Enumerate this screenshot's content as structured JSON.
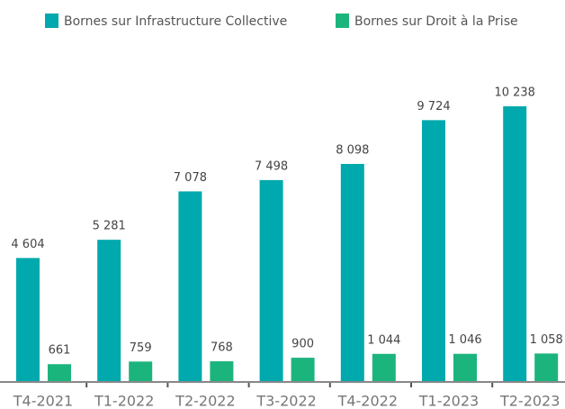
{
  "chart_data": {
    "type": "bar",
    "categories": [
      "T4-2021",
      "T1-2022",
      "T2-2022",
      "T3-2022",
      "T4-2022",
      "T1-2023",
      "T2-2023"
    ],
    "series": [
      {
        "name": "Bornes sur Infrastructure Collective",
        "color": "#00a9ad",
        "values": [
          4604,
          5281,
          7078,
          7498,
          8098,
          9724,
          10238
        ],
        "value_labels": [
          "4 604",
          "5 281",
          "7 078",
          "7 498",
          "8 098",
          "9 724",
          "10 238"
        ]
      },
      {
        "name": "Bornes sur Droit à la Prise",
        "color": "#1cb47d",
        "values": [
          661,
          759,
          768,
          900,
          1044,
          1046,
          1058
        ],
        "value_labels": [
          "661",
          "759",
          "768",
          "900",
          "1 044",
          "1 046",
          "1 058"
        ]
      }
    ]
  }
}
